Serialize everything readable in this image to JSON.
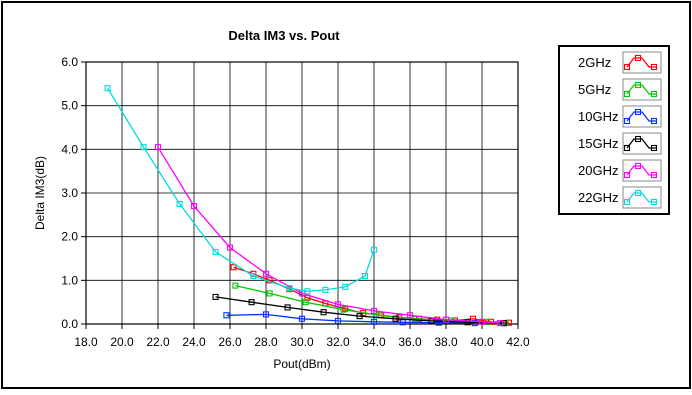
{
  "chart_data": {
    "type": "line",
    "title": "Delta IM3 vs. Pout",
    "xlabel": "Pout(dBm)",
    "ylabel": "Delta IM3(dB)",
    "xlim": [
      18.0,
      42.0
    ],
    "ylim": [
      0.0,
      6.0
    ],
    "x_ticks": [
      "18.0",
      "20.0",
      "22.0",
      "24.0",
      "26.0",
      "28.0",
      "30.0",
      "32.0",
      "34.0",
      "36.0",
      "38.0",
      "40.0",
      "42.0"
    ],
    "y_ticks": [
      "0.0",
      "1.0",
      "2.0",
      "3.0",
      "4.0",
      "5.0",
      "6.0"
    ],
    "grid": true,
    "legend_position": "right",
    "series": [
      {
        "name": "2GHz",
        "color": "#ff0000",
        "points": [
          [
            26.2,
            1.3
          ],
          [
            27.3,
            1.15
          ],
          [
            28.2,
            1.0
          ],
          [
            29.3,
            0.8
          ],
          [
            30.3,
            0.6
          ],
          [
            31.3,
            0.47
          ],
          [
            32.4,
            0.35
          ],
          [
            33.4,
            0.25
          ],
          [
            34.4,
            0.2
          ],
          [
            35.4,
            0.15
          ],
          [
            36.5,
            0.12
          ],
          [
            37.5,
            0.1
          ],
          [
            38.5,
            0.08
          ],
          [
            39.5,
            0.12
          ],
          [
            40.5,
            0.05
          ],
          [
            41.5,
            0.03
          ]
        ]
      },
      {
        "name": "5GHz",
        "color": "#00cc00",
        "points": [
          [
            26.3,
            0.88
          ],
          [
            28.2,
            0.7
          ],
          [
            30.2,
            0.5
          ],
          [
            32.3,
            0.33
          ],
          [
            34.3,
            0.2
          ],
          [
            36.3,
            0.12
          ],
          [
            38.3,
            0.08
          ],
          [
            40.3,
            0.05
          ],
          [
            41.3,
            0.02
          ]
        ]
      },
      {
        "name": "10GHz",
        "color": "#0033ff",
        "points": [
          [
            25.8,
            0.2
          ],
          [
            28.0,
            0.22
          ],
          [
            30.0,
            0.12
          ],
          [
            32.0,
            0.07
          ],
          [
            34.0,
            0.05
          ],
          [
            35.6,
            0.04
          ],
          [
            37.6,
            0.03
          ],
          [
            39.6,
            0.02
          ]
        ]
      },
      {
        "name": "15GHz",
        "color": "#000000",
        "points": [
          [
            25.2,
            0.62
          ],
          [
            27.2,
            0.5
          ],
          [
            29.2,
            0.38
          ],
          [
            31.2,
            0.27
          ],
          [
            33.2,
            0.18
          ],
          [
            35.2,
            0.12
          ],
          [
            37.2,
            0.07
          ],
          [
            39.2,
            0.04
          ],
          [
            41.2,
            0.02
          ]
        ]
      },
      {
        "name": "20GHz",
        "color": "#ff00ff",
        "points": [
          [
            22.0,
            4.05
          ],
          [
            24.0,
            2.7
          ],
          [
            26.0,
            1.75
          ],
          [
            28.0,
            1.15
          ],
          [
            30.0,
            0.7
          ],
          [
            32.0,
            0.45
          ],
          [
            34.0,
            0.3
          ],
          [
            36.0,
            0.2
          ],
          [
            38.0,
            0.1
          ],
          [
            40.0,
            0.05
          ],
          [
            41.0,
            0.02
          ]
        ]
      },
      {
        "name": "22GHz",
        "color": "#00dddd",
        "points": [
          [
            19.2,
            5.4
          ],
          [
            21.2,
            4.05
          ],
          [
            23.2,
            2.75
          ],
          [
            25.2,
            1.65
          ],
          [
            27.3,
            1.1
          ],
          [
            29.3,
            0.82
          ],
          [
            30.3,
            0.75
          ],
          [
            31.3,
            0.78
          ],
          [
            32.4,
            0.85
          ],
          [
            33.5,
            1.1
          ],
          [
            34.0,
            1.7
          ]
        ]
      }
    ]
  }
}
